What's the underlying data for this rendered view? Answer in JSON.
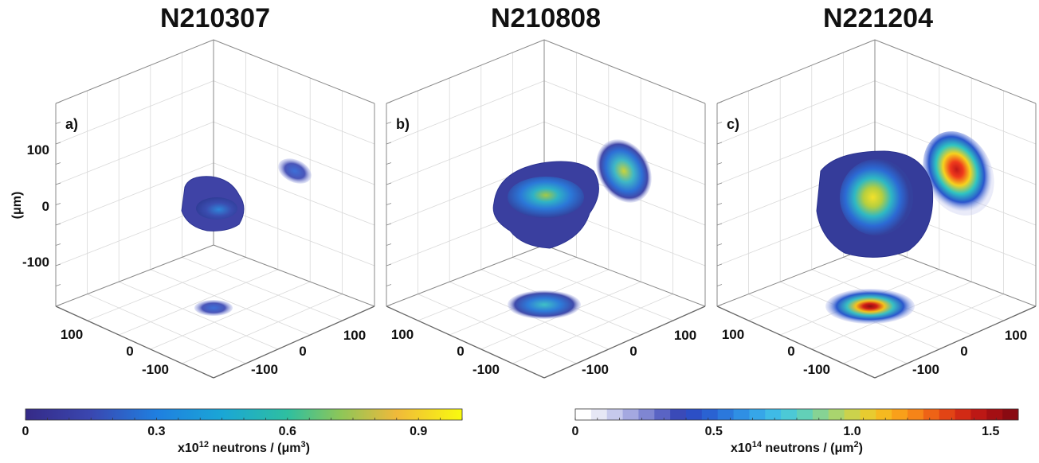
{
  "chart_data": [
    {
      "panel_label": "a)",
      "title": "N210307",
      "type": "3d-volume",
      "ylabel": "(μm)",
      "z_ticks": [
        100,
        0,
        -100
      ],
      "x_ticks": [
        100,
        0,
        -100
      ],
      "y_ticks": [
        100,
        0,
        -100
      ],
      "grid": true,
      "colorbar": "volume",
      "peak_volume_density": 0.3
    },
    {
      "panel_label": "b)",
      "title": "N210808",
      "type": "3d-volume",
      "x_ticks": [
        100,
        0,
        -100
      ],
      "y_ticks": [
        100,
        0,
        -100
      ],
      "grid": true,
      "colorbar": "volume",
      "peak_volume_density": 0.75
    },
    {
      "panel_label": "c)",
      "title": "N221204",
      "type": "3d-volume",
      "x_ticks": [
        100,
        0,
        -100
      ],
      "y_ticks": [
        100,
        0,
        -100
      ],
      "grid": true,
      "colorbar": "projection",
      "peak_volume_density": 0.9,
      "peak_projection_density": 1.55
    }
  ],
  "colorbars": {
    "volume": {
      "ticks": [
        "0",
        "0.3",
        "0.6",
        "0.9"
      ],
      "tick_values": [
        0,
        0.3,
        0.6,
        0.9
      ],
      "range": [
        0,
        1.0
      ],
      "label_prefix": "x10",
      "label_exp": "12",
      "label_mid": " neutrons / (μm",
      "label_unit_exp": "3",
      "label_suffix": ")",
      "colormap": "parula"
    },
    "projection": {
      "ticks": [
        "0",
        "0.5",
        "1.0",
        "1.5"
      ],
      "tick_values": [
        0,
        0.5,
        1.0,
        1.5
      ],
      "range": [
        0,
        1.6
      ],
      "label_prefix": "x10",
      "label_exp": "14",
      "label_mid": " neutrons / (μm",
      "label_unit_exp": "2",
      "label_suffix": ")",
      "colormap": "jet-white"
    }
  }
}
